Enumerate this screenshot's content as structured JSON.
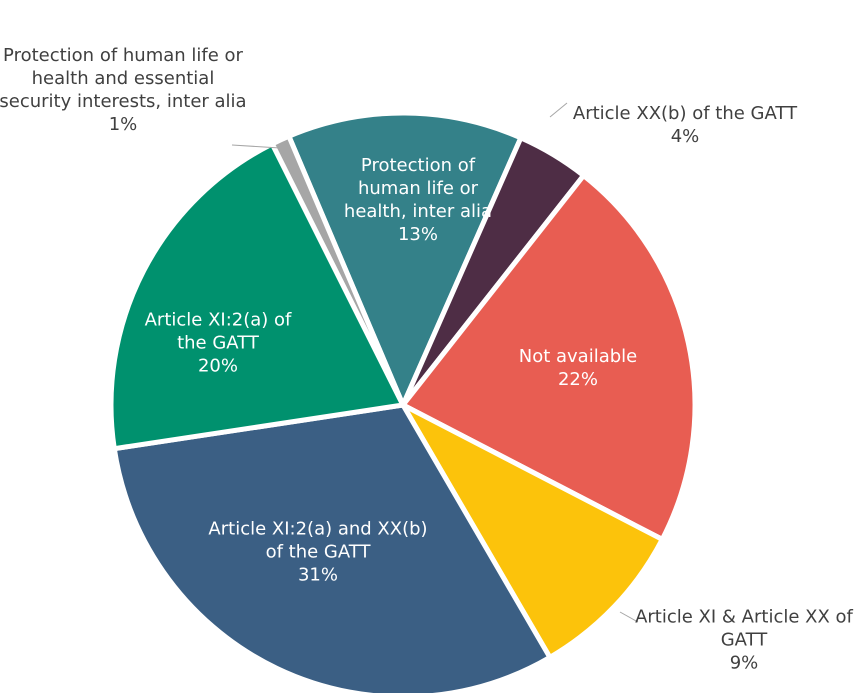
{
  "chart_data": {
    "type": "pie",
    "categories": [
      "Protection of human life or health, inter alia",
      "Article XX(b) of the GATT",
      "Not available",
      "Article XI & Article XX of GATT",
      "Article XI:2(a) and XX(b) of the GATT",
      "Article XI:2(a) of the GATT",
      "Protection of human life or health and essential security interests, inter alia"
    ],
    "values": [
      13,
      4,
      22,
      9,
      31,
      20,
      1
    ],
    "value_labels": [
      "13%",
      "4%",
      "22%",
      "9%",
      "31%",
      "20%",
      "1%"
    ],
    "colors": [
      "#348189",
      "#4e2d45",
      "#e85d52",
      "#fcc30b",
      "#3b5f84",
      "#00916e",
      "#a6a6a6"
    ]
  }
}
